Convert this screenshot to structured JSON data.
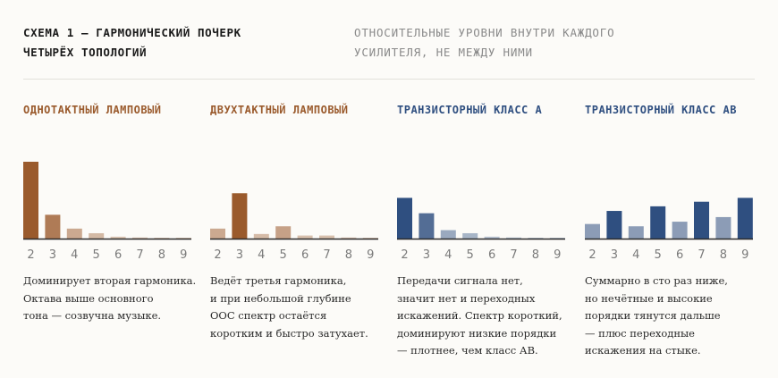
{
  "header": {
    "title_lines": [
      "СХЕМА 1 — ГАРМОНИЧЕСКИЙ ПОЧЕРК",
      "ЧЕТЫРЁХ ТОПОЛОГИЙ"
    ],
    "subtitle_lines": [
      "ОТНОСИТЕЛЬНЫЕ УРОВНИ ВНУТРИ КАЖДОГО",
      "УСИЛИТЕЛЯ, НЕ МЕЖДУ НИМИ"
    ]
  },
  "colors": {
    "tube": "#9a5a2c",
    "solid": "#2f4f80",
    "baseline": "#2b2b2b"
  },
  "chart_data": [
    {
      "type": "bar",
      "title": "ОДНОТАКТНЫЙ ЛАМПОВЫЙ",
      "categories": [
        "2",
        "3",
        "4",
        "5",
        "6",
        "7",
        "8",
        "9"
      ],
      "values": [
        1.0,
        0.31,
        0.13,
        0.07,
        0.025,
        0.015,
        0.01,
        0.005
      ],
      "ylim": [
        0,
        1
      ],
      "description": [
        "Доминирует вторая гармоника.",
        "Октава выше основного",
        "тона — созвучна музыке."
      ]
    },
    {
      "type": "bar",
      "title": "ДВУХТАКТНЫЙ ЛАМПОВЫЙ",
      "categories": [
        "2",
        "3",
        "4",
        "5",
        "6",
        "7",
        "8",
        "9"
      ],
      "values": [
        0.13,
        0.59,
        0.06,
        0.16,
        0.04,
        0.04,
        0.015,
        0.01
      ],
      "ylim": [
        0,
        1
      ],
      "description": [
        "Ведёт третья гармоника,",
        "и при небольшой глубине",
        "ООС спектр остаётся",
        "коротким и быстро затухает."
      ]
    },
    {
      "type": "bar",
      "title": "ТРАНЗИСТОРНЫЙ КЛАСС А",
      "categories": [
        "2",
        "3",
        "4",
        "5",
        "6",
        "7",
        "8",
        "9"
      ],
      "values": [
        0.53,
        0.33,
        0.11,
        0.07,
        0.025,
        0.015,
        0.008,
        0.005
      ],
      "ylim": [
        0,
        1
      ],
      "description": [
        "Передачи сигнала нет,",
        "значит нет и переходных",
        "искажений. Спектр короткий,",
        "доминируют низкие порядки",
        "— плотнее, чем класс АВ."
      ]
    },
    {
      "type": "bar",
      "title": "ТРАНЗИСТОРНЫЙ КЛАСС АВ",
      "categories": [
        "2",
        "3",
        "4",
        "5",
        "6",
        "7",
        "8",
        "9"
      ],
      "values": [
        0.19,
        0.36,
        0.16,
        0.42,
        0.22,
        0.48,
        0.28,
        0.53
      ],
      "ylim": [
        0,
        1
      ],
      "description": [
        "Суммарно в сто раз ниже,",
        "но нечётные и высокие",
        "порядки тянутся дальше",
        "— плюс переходные",
        "искажения на стыке."
      ]
    }
  ]
}
